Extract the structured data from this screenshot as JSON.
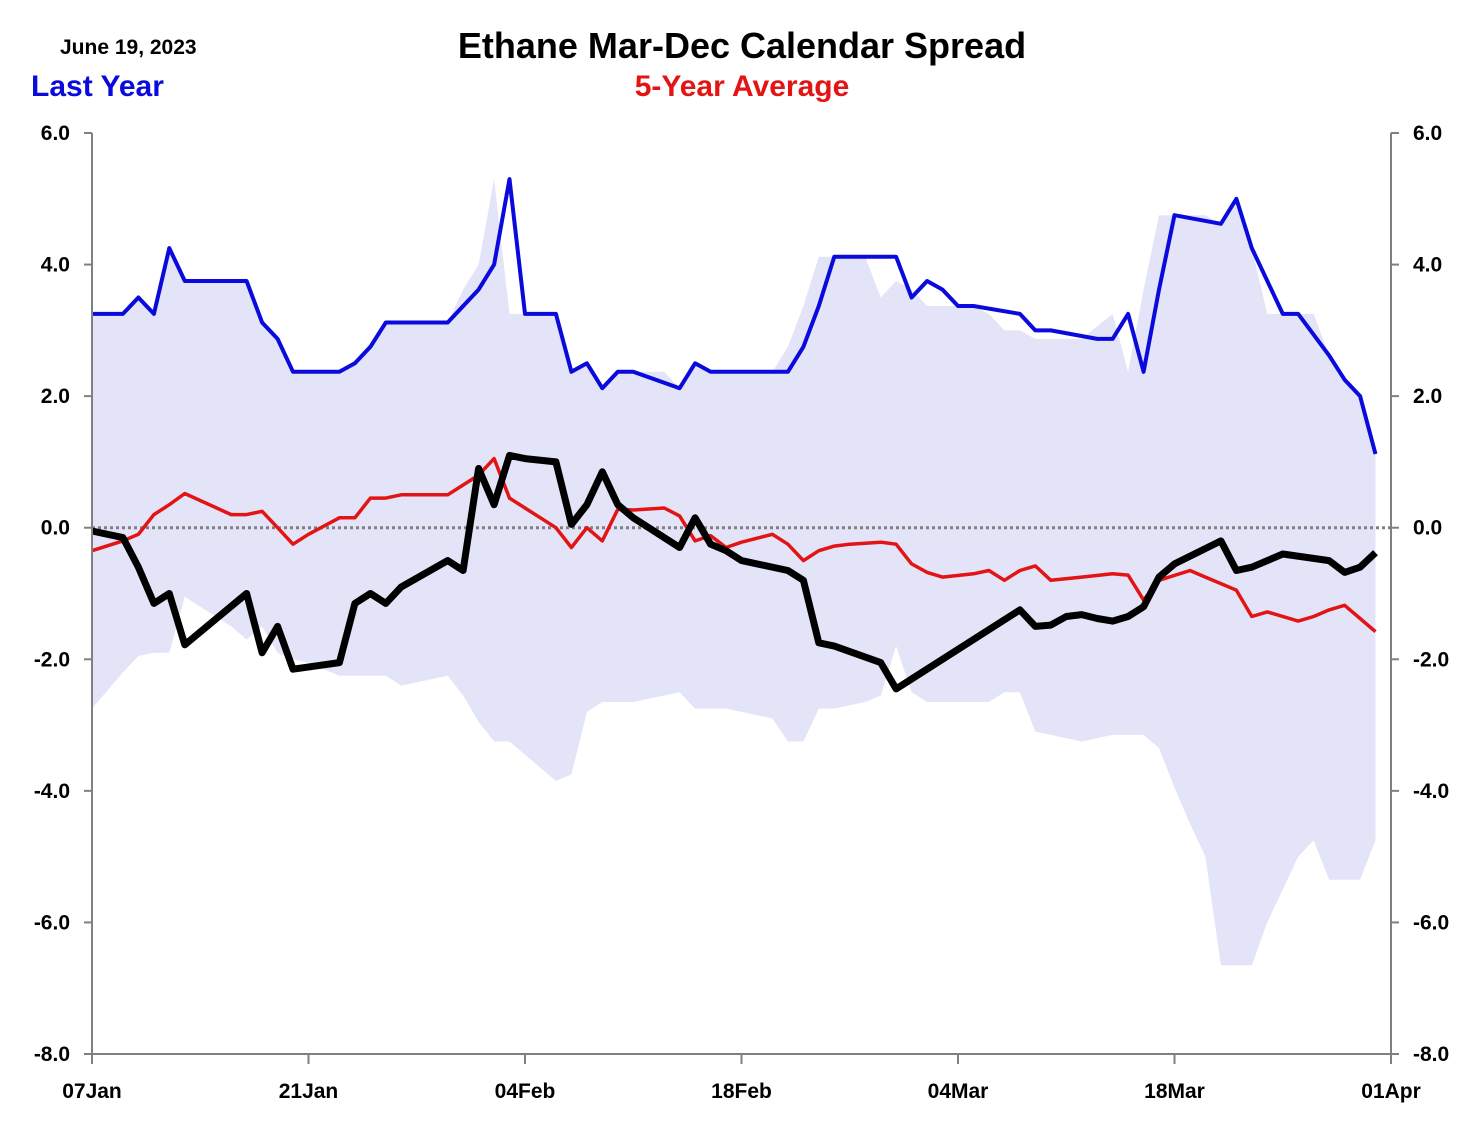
{
  "chart_data": {
    "type": "line",
    "title": "Ethane Mar-Dec Calendar Spread",
    "date_label": "June 19, 2023",
    "legend": [
      {
        "name": "Last Year",
        "color": "#0a0adc"
      },
      {
        "name": "5-Year Average",
        "color": "#e21414"
      }
    ],
    "ylim": [
      -8,
      6
    ],
    "yticks": [
      6,
      4,
      2,
      0,
      -2,
      -4,
      -6,
      -8
    ],
    "ytick_labels": [
      "6.0",
      "4.0",
      "2.0",
      "0.0",
      "-2.0",
      "-4.0",
      "-6.0",
      "-8.0"
    ],
    "xlim": [
      0,
      84
    ],
    "xticks": [
      0,
      14,
      28,
      42,
      56,
      70,
      84
    ],
    "xtick_labels": [
      "07Jan",
      "21Jan",
      "04Feb",
      "18Feb",
      "04Mar",
      "18Mar",
      "01Apr"
    ],
    "zero_line": true,
    "colors": {
      "range_fill": "#e4e4f8",
      "current": "#000000",
      "last_year": "#0a0adc",
      "avg": "#e21414",
      "axis": "#808080",
      "zero": "#808080"
    },
    "series": [
      {
        "name": "Last Year",
        "x": [
          0,
          2,
          3,
          4,
          5,
          6,
          10,
          11,
          12,
          13,
          16,
          17,
          18,
          19,
          20,
          21,
          23,
          25,
          26,
          27,
          28,
          30,
          31,
          32,
          33,
          34,
          35,
          38,
          39,
          40,
          41,
          42,
          45,
          46,
          47,
          48,
          52,
          53,
          54,
          55,
          56,
          57,
          60,
          61,
          62,
          65,
          66,
          67,
          68,
          69,
          70,
          73,
          74,
          75,
          77,
          78,
          80,
          81,
          82,
          83
        ],
        "values": [
          3.25,
          3.25,
          3.5,
          3.25,
          4.25,
          3.75,
          3.75,
          3.12,
          2.87,
          2.37,
          2.37,
          2.5,
          2.75,
          3.12,
          3.12,
          3.12,
          3.12,
          3.62,
          4.0,
          5.3,
          3.25,
          3.25,
          2.37,
          2.5,
          2.12,
          2.37,
          2.37,
          2.12,
          2.5,
          2.37,
          2.37,
          2.37,
          2.37,
          2.75,
          3.37,
          4.12,
          4.12,
          3.5,
          3.75,
          3.62,
          3.37,
          3.37,
          3.25,
          3.0,
          3.0,
          2.87,
          2.87,
          3.25,
          2.37,
          3.62,
          4.75,
          4.62,
          5.0,
          4.25,
          3.25,
          3.25,
          2.62,
          2.25,
          2.0,
          1.12
        ]
      },
      {
        "name": "5-Year Average",
        "x": [
          0,
          2,
          3,
          4,
          5,
          6,
          9,
          10,
          11,
          12,
          13,
          14,
          16,
          17,
          18,
          19,
          20,
          22,
          23,
          24,
          25,
          26,
          27,
          28,
          30,
          31,
          32,
          33,
          34,
          35,
          37,
          38,
          39,
          40,
          41,
          42,
          44,
          45,
          46,
          47,
          48,
          49,
          51,
          52,
          53,
          54,
          55,
          57,
          58,
          59,
          60,
          61,
          62,
          64,
          66,
          67,
          68,
          69,
          71,
          72,
          73,
          74,
          75,
          76,
          78,
          79,
          80,
          81,
          82,
          83
        ],
        "values": [
          -0.35,
          -0.2,
          -0.1,
          0.2,
          0.35,
          0.52,
          0.2,
          0.2,
          0.25,
          0.0,
          -0.25,
          -0.1,
          0.15,
          0.15,
          0.45,
          0.45,
          0.5,
          0.5,
          0.5,
          0.65,
          0.8,
          1.05,
          0.45,
          0.3,
          0.0,
          -0.3,
          0.0,
          -0.2,
          0.28,
          0.27,
          0.3,
          0.18,
          -0.2,
          -0.12,
          -0.3,
          -0.22,
          -0.1,
          -0.25,
          -0.5,
          -0.35,
          -0.28,
          -0.25,
          -0.22,
          -0.25,
          -0.55,
          -0.68,
          -0.75,
          -0.7,
          -0.65,
          -0.8,
          -0.65,
          -0.58,
          -0.8,
          -0.75,
          -0.7,
          -0.72,
          -1.1,
          -0.8,
          -0.65,
          -0.75,
          -0.85,
          -0.95,
          -1.35,
          -1.28,
          -1.42,
          -1.35,
          -1.25,
          -1.18,
          -1.38,
          -1.58
        ]
      },
      {
        "name": "Current",
        "x": [
          0,
          2,
          3,
          4,
          5,
          6,
          10,
          11,
          12,
          13,
          16,
          17,
          18,
          19,
          20,
          23,
          24,
          25,
          26,
          27,
          28,
          30,
          31,
          32,
          33,
          34,
          35,
          38,
          39,
          40,
          41,
          42,
          45,
          46,
          47,
          48,
          51,
          52,
          53,
          60,
          61,
          62,
          63,
          64,
          65,
          66,
          67,
          68,
          69,
          70,
          73,
          74,
          75,
          77,
          80,
          81,
          82,
          83
        ],
        "values": [
          -0.05,
          -0.15,
          -0.6,
          -1.15,
          -1.0,
          -1.78,
          -1.0,
          -1.9,
          -1.5,
          -2.15,
          -2.05,
          -1.15,
          -1.0,
          -1.15,
          -0.9,
          -0.5,
          -0.65,
          0.9,
          0.35,
          1.1,
          1.05,
          1.0,
          0.05,
          0.35,
          0.85,
          0.35,
          0.15,
          -0.3,
          0.15,
          -0.25,
          -0.35,
          -0.5,
          -0.65,
          -0.8,
          -1.75,
          -1.8,
          -2.05,
          -2.45,
          -2.3,
          -1.25,
          -1.5,
          -1.48,
          -1.35,
          -1.32,
          -1.38,
          -1.42,
          -1.35,
          -1.2,
          -0.75,
          -0.55,
          -0.2,
          -0.65,
          -0.6,
          -0.4,
          -0.5,
          -0.68,
          -0.6,
          -0.38
        ]
      },
      {
        "name": "Range",
        "x": [
          0,
          2,
          3,
          4,
          5,
          6,
          9,
          10,
          11,
          12,
          13,
          14,
          16,
          17,
          18,
          19,
          20,
          23,
          24,
          25,
          26,
          27,
          28,
          30,
          31,
          32,
          33,
          34,
          35,
          37,
          38,
          39,
          40,
          41,
          42,
          44,
          45,
          46,
          47,
          48,
          50,
          51,
          52,
          53,
          54,
          55,
          57,
          58,
          59,
          60,
          61,
          62,
          64,
          66,
          67,
          68,
          69,
          70,
          71,
          72,
          73,
          74,
          75,
          76,
          77,
          78,
          79,
          80,
          81,
          82,
          83
        ],
        "upper": [
          3.25,
          3.25,
          3.5,
          3.25,
          4.25,
          3.75,
          3.75,
          3.75,
          3.12,
          2.87,
          2.37,
          2.37,
          2.37,
          2.5,
          2.75,
          3.12,
          3.12,
          3.12,
          3.62,
          4.0,
          5.3,
          3.25,
          3.25,
          3.25,
          2.37,
          2.5,
          2.12,
          2.37,
          2.37,
          2.37,
          2.12,
          2.5,
          2.37,
          2.37,
          2.37,
          2.37,
          2.75,
          3.37,
          4.12,
          4.12,
          4.12,
          3.5,
          3.75,
          3.62,
          3.37,
          3.37,
          3.37,
          3.25,
          3.0,
          3.0,
          2.87,
          2.87,
          2.87,
          3.25,
          2.37,
          3.62,
          4.75,
          4.75,
          4.75,
          4.75,
          4.62,
          5.0,
          4.25,
          3.25,
          3.25,
          3.25,
          3.25,
          2.62,
          2.25,
          2.0,
          1.12
        ],
        "lower": [
          -2.75,
          -2.2,
          -1.95,
          -1.9,
          -1.9,
          -1.05,
          -1.5,
          -1.7,
          -1.5,
          -1.9,
          -2.0,
          -2.05,
          -2.25,
          -2.25,
          -2.25,
          -2.25,
          -2.4,
          -2.25,
          -2.55,
          -2.95,
          -3.25,
          -3.25,
          -3.45,
          -3.85,
          -3.75,
          -2.8,
          -2.65,
          -2.65,
          -2.65,
          -2.55,
          -2.5,
          -2.75,
          -2.75,
          -2.75,
          -2.8,
          -2.9,
          -3.25,
          -3.25,
          -2.75,
          -2.75,
          -2.65,
          -2.55,
          -1.8,
          -2.5,
          -2.65,
          -2.65,
          -2.65,
          -2.65,
          -2.5,
          -2.5,
          -3.1,
          -3.15,
          -3.25,
          -3.15,
          -3.15,
          -3.15,
          -3.35,
          -3.95,
          -4.5,
          -5.0,
          -6.65,
          -6.65,
          -6.65,
          -6.0,
          -5.5,
          -5.0,
          -4.75,
          -5.35,
          -5.35,
          -5.35,
          -4.75
        ]
      }
    ]
  }
}
